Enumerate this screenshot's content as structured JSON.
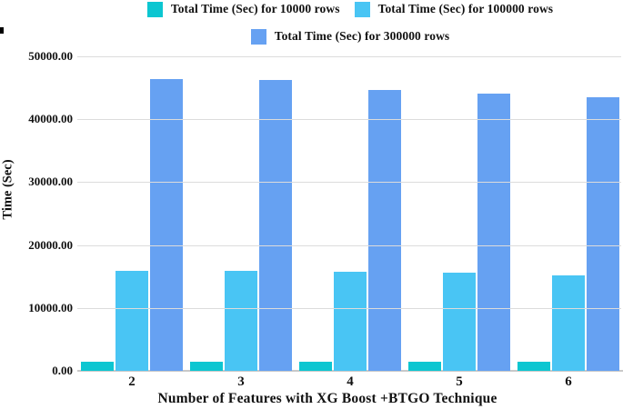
{
  "chart_data": {
    "type": "bar",
    "title": "",
    "xlabel": "Number of Features with XG Boost +BTGO Technique",
    "ylabel": "Time (Sec)",
    "categories": [
      "2",
      "3",
      "4",
      "5",
      "6"
    ],
    "series": [
      {
        "name": "Total Time (Sec) for 10000 rows",
        "rows": "10000",
        "color": "#0cc6d1",
        "values": [
          1500,
          1490,
          1470,
          1420,
          1440
        ]
      },
      {
        "name": "Total Time (Sec) for 100000 rows",
        "rows": "100000",
        "color": "#49c5f4",
        "values": [
          15900,
          15850,
          15750,
          15600,
          15150
        ]
      },
      {
        "name": "Total Time (Sec) for 300000 rows",
        "rows": "300000",
        "color": "#66a1f2",
        "values": [
          46350,
          46300,
          44600,
          44100,
          43450
        ]
      }
    ],
    "ylim": [
      0,
      50000
    ],
    "yticks": [
      "0.00",
      "10000.00",
      "20000.00",
      "30000.00",
      "40000.00",
      "50000.00"
    ],
    "grid": true,
    "legend_position": "top",
    "colors": {
      "gridline": "#dcdcdc",
      "axis_line": "#c9c9c9",
      "text": "#111111"
    }
  }
}
